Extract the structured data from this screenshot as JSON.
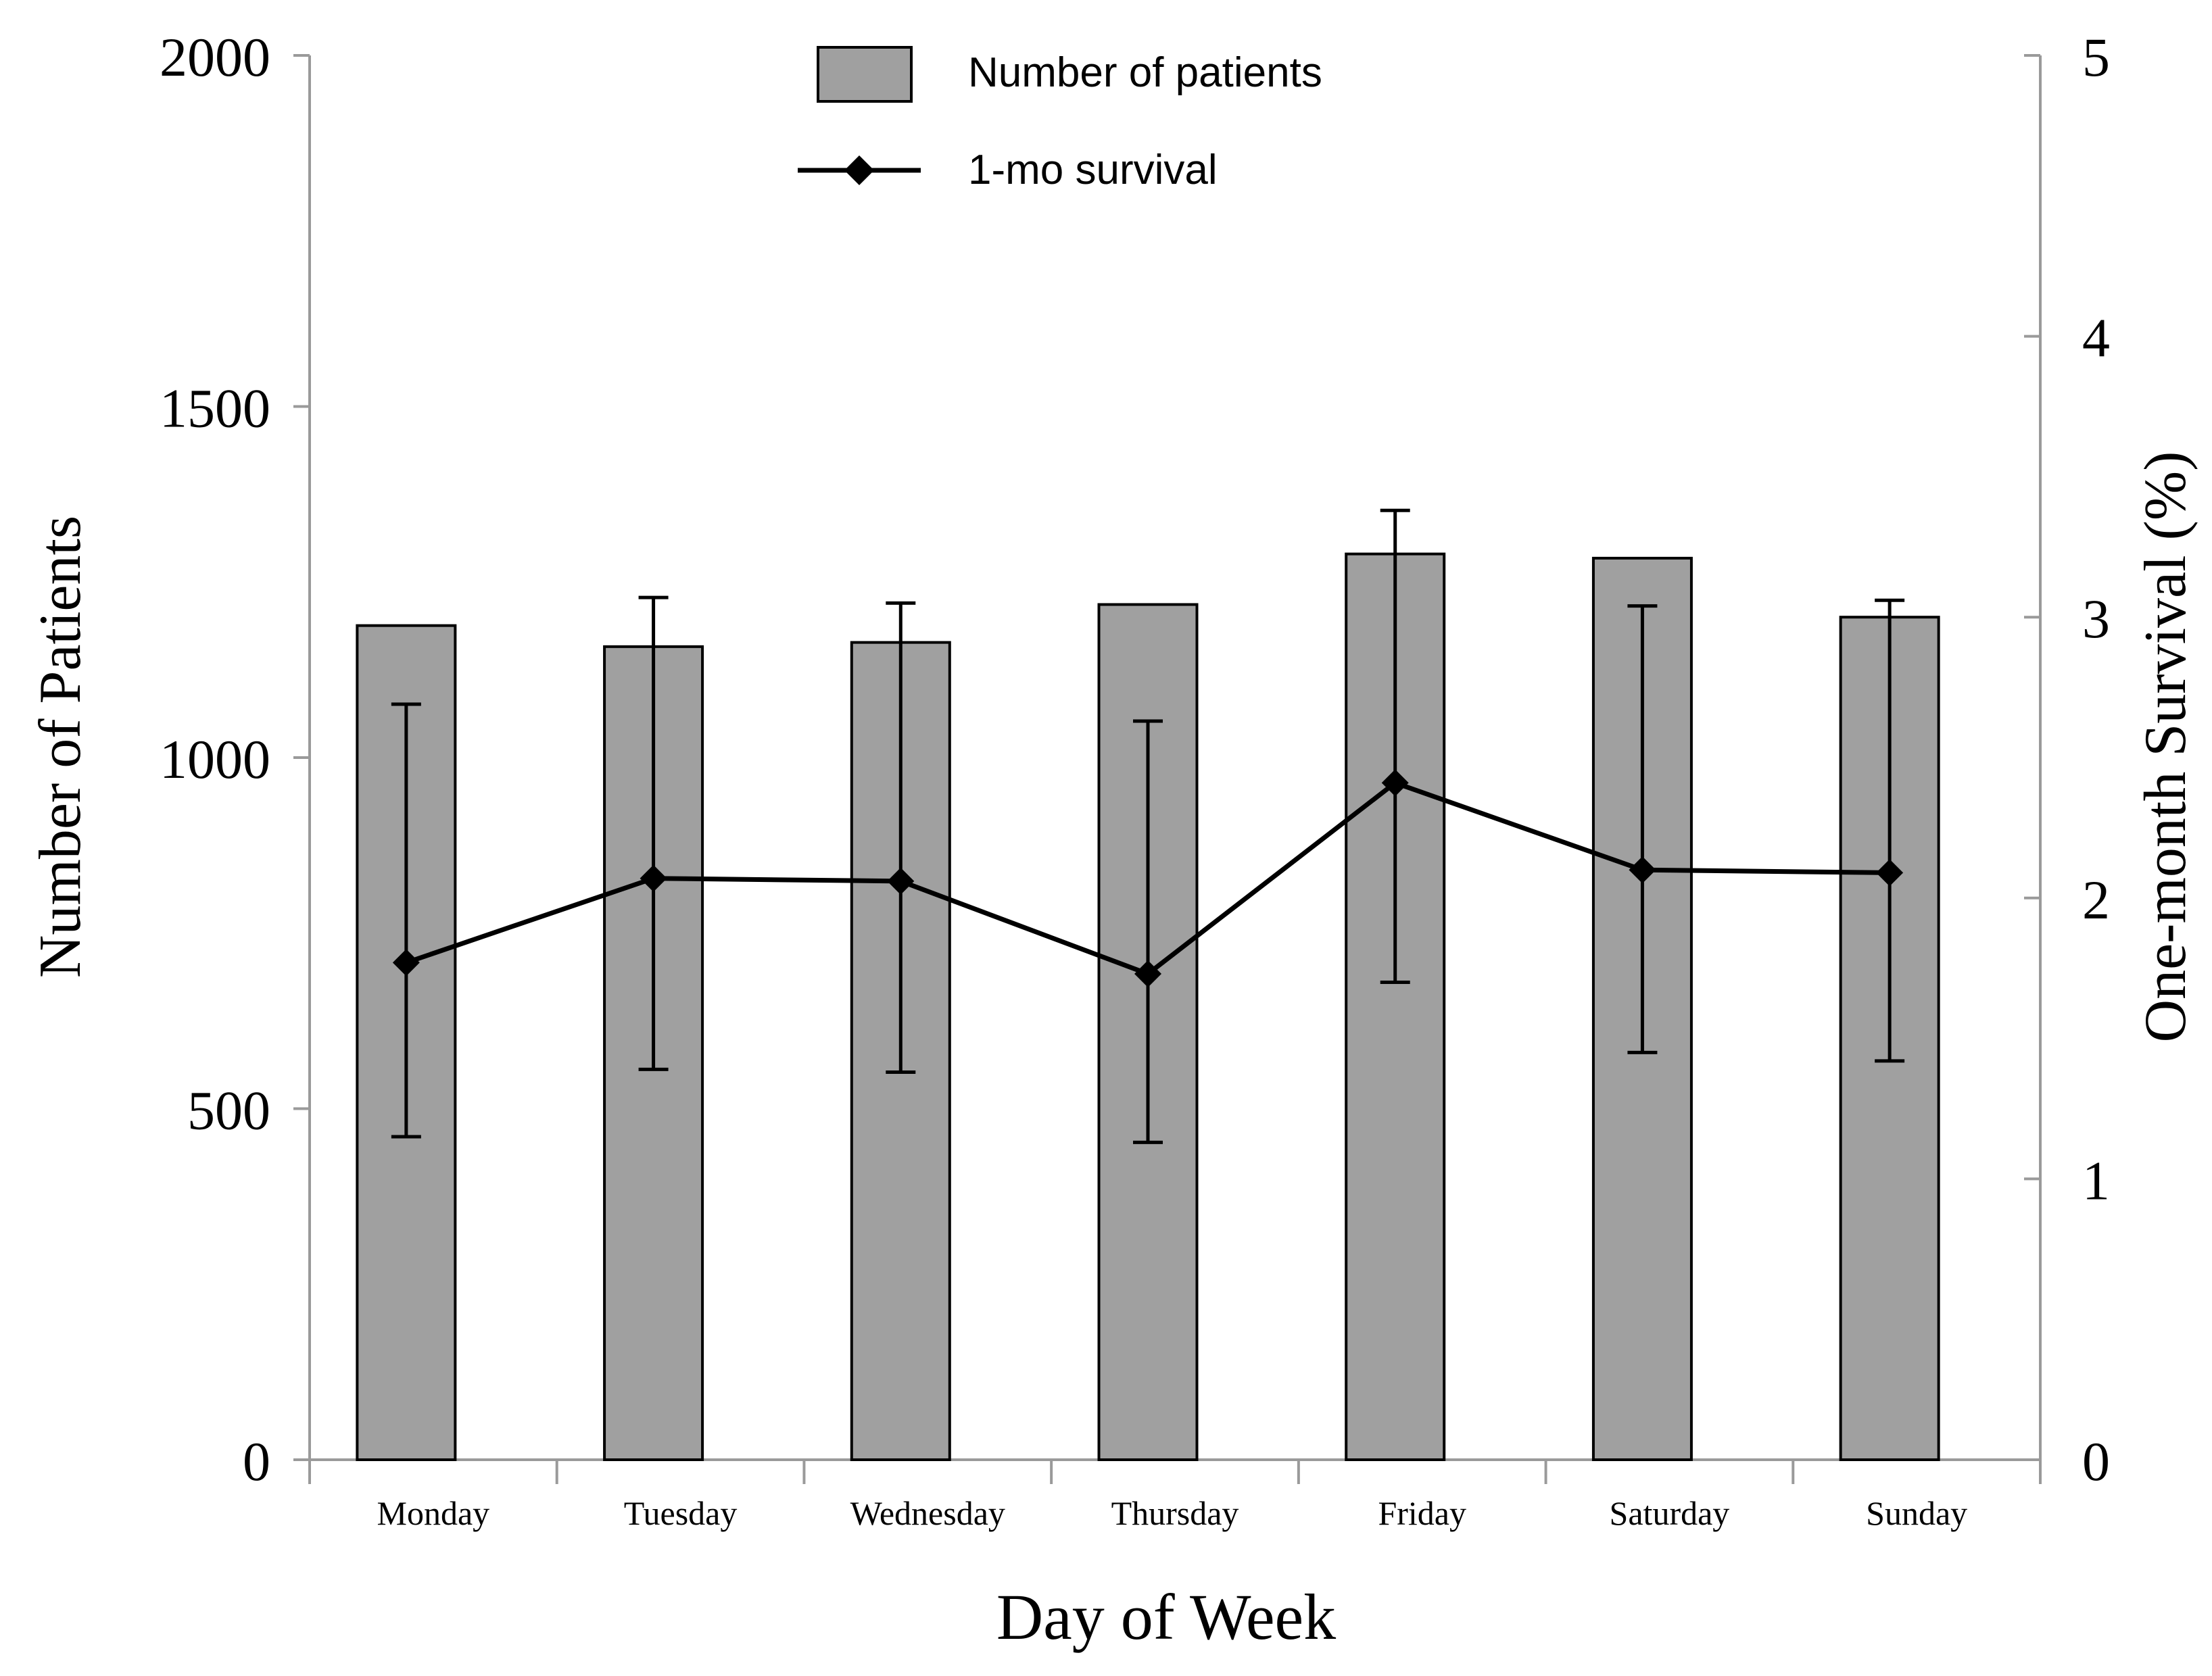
{
  "chart_data": {
    "type": "bar",
    "categories": [
      "Monday",
      "Tuesday",
      "Wednesday",
      "Thursday",
      "Friday",
      "Saturday",
      "Sunday"
    ],
    "xlabel": "Day of Week",
    "ylabel": "Number of Patients",
    "y2label": "One-month Survival (%)",
    "ylim": [
      0,
      2000
    ],
    "y2lim": [
      0,
      5
    ],
    "yticks": [
      "0",
      "500",
      "1000",
      "1500",
      "2000"
    ],
    "y2ticks": [
      "0",
      "1",
      "2",
      "3",
      "4",
      "5"
    ],
    "series": [
      {
        "name": "Number of patients",
        "kind": "bar",
        "axis": "left",
        "values": [
          1188,
          1158,
          1164,
          1218,
          1290,
          1284,
          1200
        ]
      },
      {
        "name": "1-mo survival",
        "kind": "line",
        "axis": "right",
        "marker": "diamond",
        "values": [
          1.77,
          2.07,
          2.06,
          1.73,
          2.41,
          2.1,
          2.09
        ],
        "error_low": [
          1.15,
          1.39,
          1.38,
          1.13,
          1.7,
          1.45,
          1.42
        ],
        "error_high": [
          2.69,
          3.07,
          3.05,
          2.63,
          3.38,
          3.04,
          3.06
        ]
      }
    ],
    "legend": {
      "position": "top-center"
    },
    "grid": false,
    "colors": {
      "bar_fill": "#a0a0a0",
      "bar_stroke": "#000000",
      "line": "#000000",
      "axis": "#9a9a9a"
    }
  }
}
